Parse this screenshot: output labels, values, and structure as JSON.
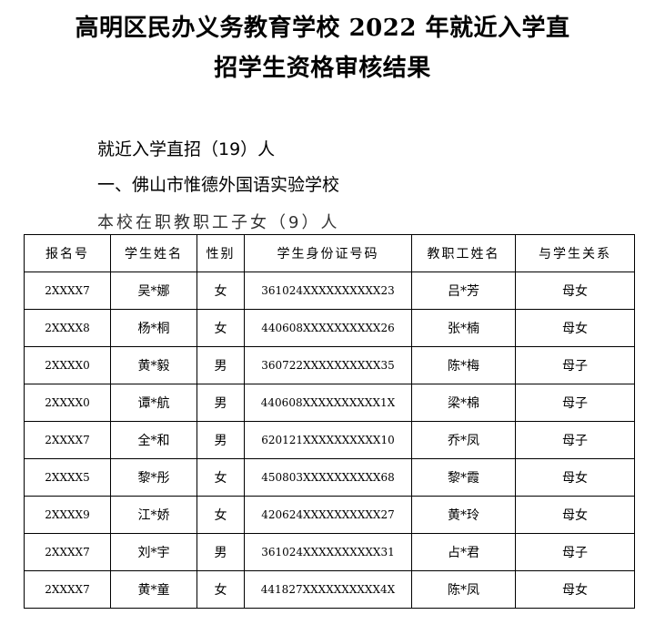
{
  "title": {
    "line1": "高明区民办义务教育学校 2022 年就近入学直",
    "line2": "招学生资格审核结果"
  },
  "section": "就近入学直招（19）人",
  "school": "一、佛山市惟德外国语实验学校",
  "category": "本校在职教职工子女（9）人",
  "table": {
    "headers": [
      "报名号",
      "学生姓名",
      "性别",
      "学生身份证号码",
      "教职工姓名",
      "与学生关系"
    ],
    "rows": [
      [
        "2XXXX7",
        "吴*娜",
        "女",
        "361024XXXXXXXXXX23",
        "吕*芳",
        "母女"
      ],
      [
        "2XXXX8",
        "杨*桐",
        "女",
        "440608XXXXXXXXXX26",
        "张*楠",
        "母女"
      ],
      [
        "2XXXX0",
        "黄*毅",
        "男",
        "360722XXXXXXXXXX35",
        "陈*梅",
        "母子"
      ],
      [
        "2XXXX0",
        "谭*航",
        "男",
        "440608XXXXXXXXXX1X",
        "梁*棉",
        "母子"
      ],
      [
        "2XXXX7",
        "全*和",
        "男",
        "620121XXXXXXXXXX10",
        "乔*凤",
        "母子"
      ],
      [
        "2XXXX5",
        "黎*彤",
        "女",
        "450803XXXXXXXXXX68",
        "黎*霞",
        "母女"
      ],
      [
        "2XXXX9",
        "江*娇",
        "女",
        "420624XXXXXXXXXX27",
        "黄*玲",
        "母女"
      ],
      [
        "2XXXX7",
        "刘*宇",
        "男",
        "361024XXXXXXXXXX31",
        "占*君",
        "母子"
      ],
      [
        "2XXXX7",
        "黄*童",
        "女",
        "441827XXXXXXXXXX4X",
        "陈*凤",
        "母女"
      ]
    ]
  }
}
